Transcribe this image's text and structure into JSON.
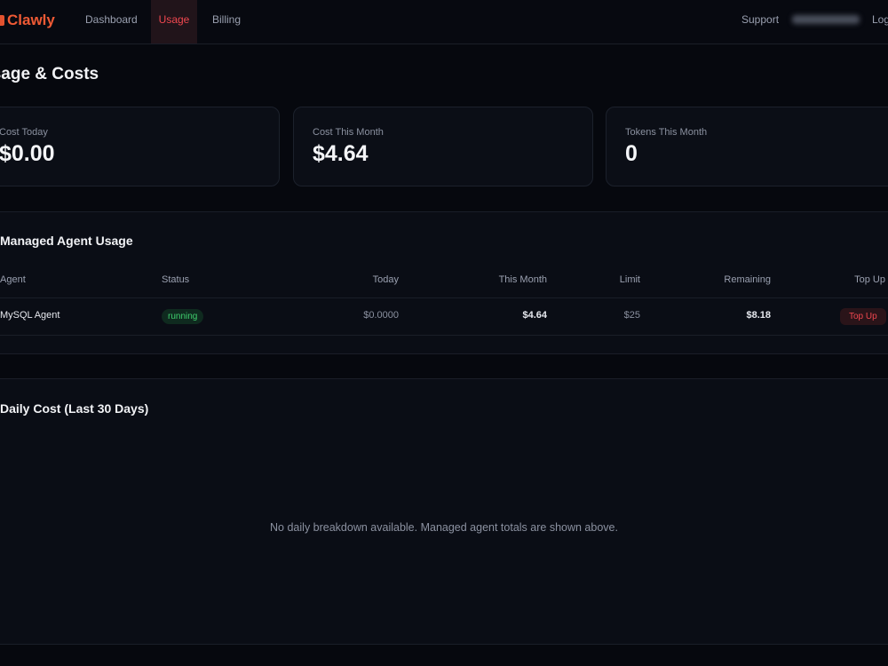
{
  "header": {
    "logo": "Clawly",
    "nav": [
      {
        "label": "Dashboard"
      },
      {
        "label": "Usage",
        "active": true
      },
      {
        "label": "Billing"
      }
    ],
    "support": "Support",
    "logout": "Log"
  },
  "page_title": "Usage & Costs",
  "cards": [
    {
      "label": "Cost Today",
      "value": "$0.00"
    },
    {
      "label": "Cost This Month",
      "value": "$4.64"
    },
    {
      "label": "Tokens This Month",
      "value": "0"
    }
  ],
  "managed": {
    "title": "Managed Agent Usage",
    "columns": [
      "Agent",
      "Status",
      "Today",
      "This Month",
      "Limit",
      "Remaining",
      "Top Up"
    ],
    "rows": [
      {
        "agent": "MySQL Agent",
        "status": "running",
        "today": "$0.0000",
        "month": "$4.64",
        "limit": "$25",
        "remaining": "$8.18",
        "action": "Top Up"
      }
    ]
  },
  "daily": {
    "title": "Daily Cost (Last 30 Days)",
    "empty": "No daily breakdown available. Managed agent totals are shown above."
  },
  "colors": {
    "accent": "#ef5a35",
    "active": "#f0474f",
    "success": "#3fcf6e"
  }
}
